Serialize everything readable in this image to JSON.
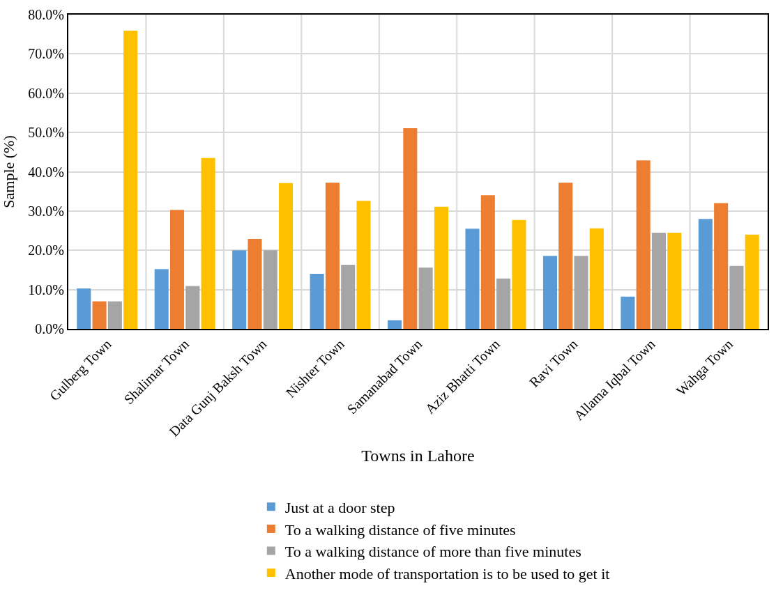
{
  "chart_data": {
    "type": "bar",
    "xlabel": "Towns in Lahore",
    "ylabel": "Sample (%)",
    "categories": [
      "Gulberg Town",
      "Shalimar Town",
      "Data Gunj Baksh Town",
      "Nishter Town",
      "Samanabad Town",
      "Aziz Bhatti Town",
      "Ravi Town",
      "Allama Iqbal Town",
      "Wahga Town"
    ],
    "series": [
      {
        "name": "Just at a door step",
        "color": "#5b9bd5",
        "values": [
          10.3,
          15.2,
          20.0,
          14.0,
          2.2,
          25.5,
          18.6,
          8.2,
          28.0
        ]
      },
      {
        "name": "To a walking distance of five minutes",
        "color": "#ed7d31",
        "values": [
          7.0,
          30.3,
          22.9,
          37.2,
          51.1,
          34.0,
          37.2,
          42.9,
          32.0
        ]
      },
      {
        "name": "To a walking distance of more than five minutes",
        "color": "#a5a5a5",
        "values": [
          7.0,
          10.9,
          20.0,
          16.3,
          15.6,
          12.8,
          18.6,
          24.5,
          16.0
        ]
      },
      {
        "name": "Another mode of transportation is to be used to get it",
        "color": "#ffc000",
        "values": [
          75.9,
          43.5,
          37.1,
          32.6,
          31.1,
          27.7,
          25.6,
          24.5,
          24.0
        ]
      }
    ],
    "ylim": [
      0,
      80
    ],
    "yticks": [
      {
        "value": 0,
        "label": "0.0%"
      },
      {
        "value": 10,
        "label": "10.0%"
      },
      {
        "value": 20,
        "label": "20.0%"
      },
      {
        "value": 30,
        "label": "30.0%"
      },
      {
        "value": 40,
        "label": "40.0%"
      },
      {
        "value": 50,
        "label": "50.0%"
      },
      {
        "value": 60,
        "label": "60.0%"
      },
      {
        "value": 70,
        "label": "70.0%"
      },
      {
        "value": 80,
        "label": "80.0%"
      }
    ],
    "grid": true,
    "legend": "bottom"
  }
}
